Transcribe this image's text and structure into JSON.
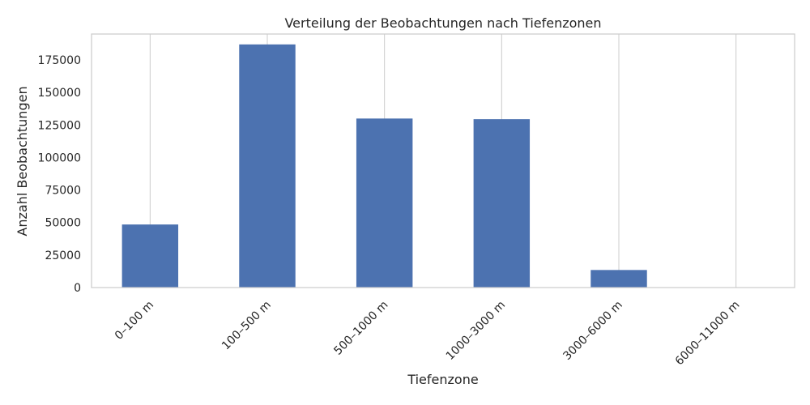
{
  "chart_data": {
    "type": "bar",
    "title": "Verteilung der Beobachtungen nach Tiefenzonen",
    "xlabel": "Tiefenzone",
    "ylabel": "Anzahl Beobachtungen",
    "categories": [
      "0–100 m",
      "100–500 m",
      "500–1000 m",
      "1000–3000 m",
      "3000–6000 m",
      "6000–11000 m"
    ],
    "values": [
      48500,
      187000,
      130000,
      129500,
      13500,
      0
    ],
    "ylim": [
      0,
      195000
    ],
    "yticks": [
      0,
      25000,
      50000,
      75000,
      100000,
      125000,
      150000,
      175000
    ],
    "ytick_labels": [
      "0",
      "25000",
      "50000",
      "75000",
      "100000",
      "125000",
      "150000",
      "175000"
    ],
    "grid": "vertical",
    "bar_color": "#4c72b0",
    "grid_color": "#cccccc",
    "legend": "none"
  }
}
